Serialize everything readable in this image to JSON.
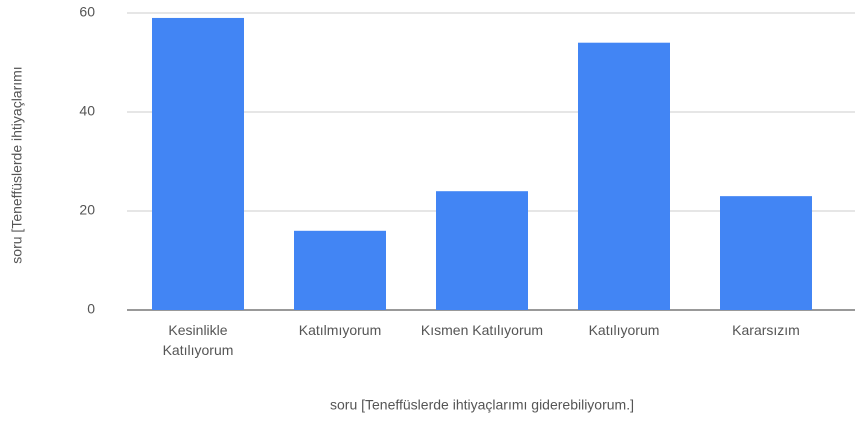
{
  "chart_data": {
    "type": "bar",
    "categories": [
      "Kesinlikle Katılıyorum",
      "Katılmıyorum",
      "Kısmen Katılıyorum",
      "Katılıyorum",
      "Kararsızım"
    ],
    "values": [
      59,
      16,
      24,
      54,
      23
    ],
    "color": "#4285f4",
    "x_label": "soru [Teneffüslerde ihtiyaçlarımı giderebiliyorum.]",
    "y_label": "soru [Teneffüslerde ihtiyaçlarımı",
    "ylim": [
      0,
      60
    ],
    "yticks": [
      0,
      20,
      40,
      60
    ],
    "grid": true
  }
}
